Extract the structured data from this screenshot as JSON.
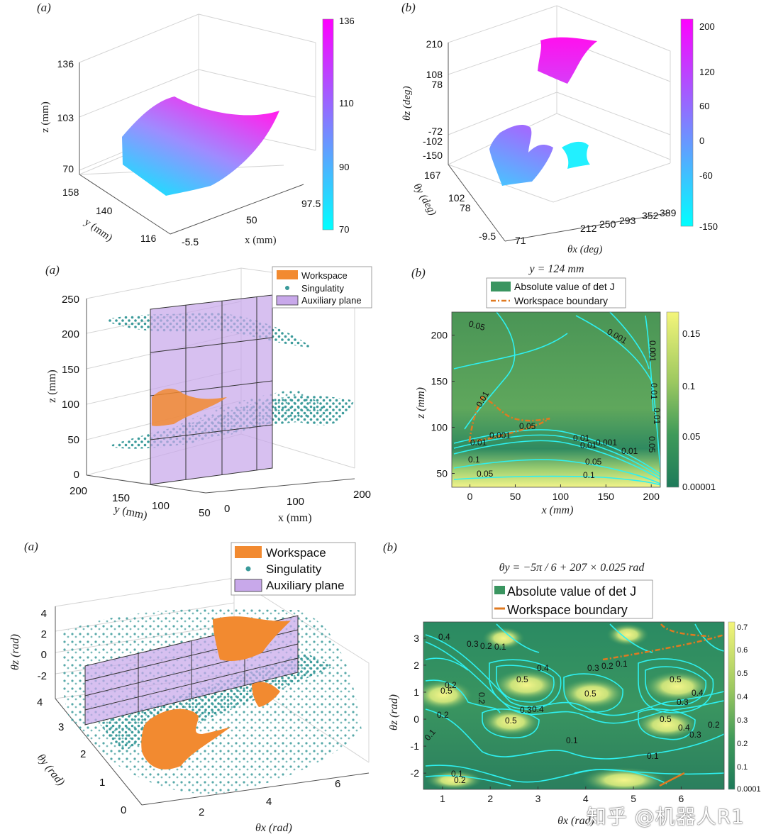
{
  "chart_data": [
    {
      "panel": "(a)",
      "type": "surface3d",
      "xlabel": "x (mm)",
      "ylabel": "y (mm)",
      "zlabel": "z (mm)",
      "xticks": [
        "-5.5",
        "50",
        "97.5"
      ],
      "yticks": [
        "116",
        "140",
        "158"
      ],
      "zticks": [
        "70",
        "103",
        "136"
      ],
      "colorbar": {
        "ticks": [
          "70",
          "90",
          "110",
          "136"
        ],
        "min": 70,
        "max": 136,
        "colors": [
          "#00ffff",
          "#ff00ff"
        ]
      }
    },
    {
      "panel": "(b)",
      "type": "surface3d",
      "xlabel": "θx (deg)",
      "ylabel": "θy (deg)",
      "zlabel": "θz (deg)",
      "xticks": [
        "71",
        "212",
        "250",
        "293",
        "352",
        "389"
      ],
      "yticks": [
        "-9.5",
        "78",
        "102",
        "167"
      ],
      "zticks": [
        "-150",
        "-102",
        "-72",
        "78",
        "108",
        "210"
      ],
      "colorbar": {
        "ticks": [
          "-150",
          "-60",
          "0",
          "60",
          "120",
          "200"
        ],
        "min": -150,
        "max": 200,
        "colors": [
          "#00ffff",
          "#ff00ff"
        ]
      }
    },
    {
      "panel": "(a)",
      "type": "scatter3d",
      "xlabel": "x (mm)",
      "ylabel": "y (mm)",
      "zlabel": "z (mm)",
      "xticks": [
        "0",
        "100",
        "200"
      ],
      "yticks": [
        "50",
        "100",
        "150",
        "200"
      ],
      "zticks": [
        "0",
        "50",
        "100",
        "150",
        "200",
        "250"
      ],
      "legend": [
        "Workspace",
        "Singulatity",
        "Auxiliary plane"
      ],
      "colors": {
        "workspace": "#f28a30",
        "singularity": "#3a9a9a",
        "plane": "#c8a8ea"
      }
    },
    {
      "panel": "(b)",
      "type": "contour",
      "title": "y = 124 mm",
      "xlabel": "x (mm)",
      "ylabel": "z (mm)",
      "xlim": [
        -20,
        210
      ],
      "ylim": [
        35,
        225
      ],
      "xticks": [
        "0",
        "50",
        "100",
        "150",
        "200"
      ],
      "yticks": [
        "50",
        "100",
        "150",
        "200"
      ],
      "legend": [
        "Absolute value of det J",
        "Workspace boundary"
      ],
      "contour_labels": [
        "0.05",
        "0.001",
        "0.01",
        "0.05",
        "0.1",
        "0.05",
        "0.01",
        "0.001",
        "0.01",
        "0.01",
        "0.001",
        "0.01",
        "0.05",
        "0.1",
        "0.05",
        "0.1",
        "0.001",
        "0.01",
        "0.01",
        "0.05"
      ],
      "colorbar": {
        "ticks": [
          "0.00001",
          "0.05",
          "0.1",
          "0.15"
        ],
        "min": 1e-05,
        "max": 0.17
      }
    },
    {
      "panel": "(a)",
      "type": "scatter3d",
      "xlabel": "θx (rad)",
      "ylabel": "θy (rad)",
      "zlabel": "θz (rad)",
      "xticks": [
        "2",
        "4",
        "6"
      ],
      "yticks": [
        "0",
        "1",
        "2",
        "3",
        "4"
      ],
      "zticks": [
        "-2",
        "0",
        "2",
        "4"
      ],
      "legend": [
        "Workspace",
        "Singulatity",
        "Auxiliary plane"
      ]
    },
    {
      "panel": "(b)",
      "type": "contour",
      "title": "θy = −5π / 6 + 207 × 0.025 rad",
      "xlabel": "θx (rad)",
      "ylabel": "θz (rad)",
      "xlim": [
        0.6,
        6.9
      ],
      "ylim": [
        -2.6,
        3.6
      ],
      "xticks": [
        "1",
        "2",
        "3",
        "4",
        "5",
        "6"
      ],
      "yticks": [
        "-2",
        "-1",
        "0",
        "1",
        "2",
        "3"
      ],
      "legend": [
        "Absolute value of det J",
        "Workspace boundary"
      ],
      "contour_labels": [
        "0.4",
        "0.3",
        "0.2",
        "0.1",
        "0.5",
        "0.4",
        "0.3",
        "0.2",
        "0.1",
        "0.5",
        "0.5",
        "0.4",
        "0.3",
        "0.2",
        "0.5",
        "0.3",
        "0.4",
        "0.5",
        "0.2",
        "0.1",
        "0.1",
        "0.2",
        "0.5",
        "0.2",
        "0.1",
        "0.1",
        "0.2",
        "0.4",
        "0.3"
      ],
      "colorbar": {
        "ticks": [
          "0.0001",
          "0.1",
          "0.2",
          "0.3",
          "0.4",
          "0.5",
          "0.6",
          "0.7"
        ],
        "min": 0.0001,
        "max": 0.72
      }
    }
  ],
  "watermark": "知乎 @机器人R1"
}
